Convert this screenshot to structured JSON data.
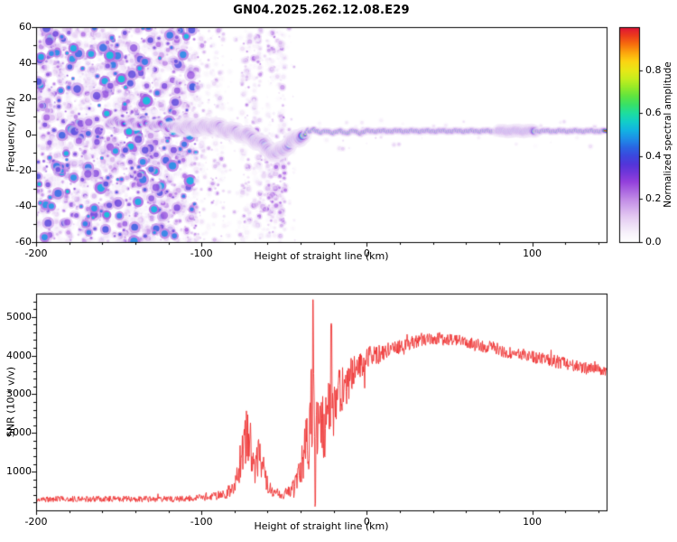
{
  "title": "GN04.2025.262.12.08.E29",
  "chart_data": [
    {
      "type": "heatmap",
      "panel": "spectrogram",
      "title": "",
      "xlabel": "Height of straight line (km)",
      "ylabel": "Frequency (Hz)",
      "xlim": [
        -200,
        145
      ],
      "ylim": [
        -60,
        60
      ],
      "xticks": [
        -200,
        -100,
        0,
        100
      ],
      "yticks": [
        -60,
        -40,
        -20,
        0,
        20,
        40,
        60
      ],
      "grid": false,
      "colorbar": {
        "label": "Normalized spectral amplitude",
        "ticks": [
          "0.0",
          "0.2",
          "0.4",
          "0.6",
          "0.8"
        ],
        "tick_values": [
          0,
          0.2,
          0.4,
          0.6,
          0.8
        ],
        "range": [
          0,
          1
        ]
      },
      "colormap_stops": [
        [
          0.0,
          "#ffffff"
        ],
        [
          0.05,
          "#f6f0fb"
        ],
        [
          0.12,
          "#e3c8f2"
        ],
        [
          0.2,
          "#c08ae6"
        ],
        [
          0.28,
          "#9440dc"
        ],
        [
          0.35,
          "#5a30d8"
        ],
        [
          0.42,
          "#3050e0"
        ],
        [
          0.48,
          "#1e8ee8"
        ],
        [
          0.54,
          "#0cc6df"
        ],
        [
          0.6,
          "#1ede9e"
        ],
        [
          0.66,
          "#46e34a"
        ],
        [
          0.72,
          "#96ea28"
        ],
        [
          0.78,
          "#dff019"
        ],
        [
          0.84,
          "#fcd412"
        ],
        [
          0.89,
          "#fc9a0c"
        ],
        [
          0.94,
          "#f4500e"
        ],
        [
          1.0,
          "#dd1238"
        ]
      ],
      "noise_region": {
        "x_range": [
          -200,
          -103
        ],
        "sparse_until": -86,
        "description": "dense low-amplitude purple speckle noise across all frequencies"
      },
      "noise_columns": [
        -73,
        -66,
        -58,
        -52
      ],
      "trace": {
        "description": "carrier frequency trace: intermittent blobs near +6 Hz on the left, dips to -11 Hz near -55 km, then a tight horizontal high-amplitude line near +2 Hz out to the right edge",
        "x": [
          -157,
          -150,
          -144,
          -138,
          -131,
          -124,
          -117,
          -110,
          -103,
          -97,
          -92,
          -87,
          -82,
          -77,
          -73,
          -69,
          -65,
          -61,
          -58,
          -55,
          -52,
          -48,
          -44,
          -40,
          -36,
          -32,
          -28,
          -24,
          -20,
          -16,
          -12,
          -8,
          -4,
          0,
          6,
          12,
          20,
          30,
          45,
          60,
          75,
          85,
          92,
          100,
          115,
          130,
          145
        ],
        "freq": [
          7,
          7,
          7,
          6,
          6,
          5,
          4,
          4,
          4,
          4,
          5,
          3,
          2,
          1,
          0,
          -2,
          -4,
          -7,
          -9,
          -11,
          -9,
          -6,
          -3,
          -1,
          1,
          3,
          1,
          2,
          1,
          2,
          1,
          2,
          1,
          2,
          2,
          2,
          2,
          2,
          2,
          2,
          2,
          2,
          2,
          2,
          2,
          2,
          2
        ],
        "amp": [
          0.5,
          0.55,
          0.5,
          0.45,
          0.5,
          0.45,
          0.5,
          0.55,
          0.6,
          0.6,
          0.6,
          0.65,
          0.6,
          0.65,
          0.65,
          0.7,
          0.7,
          0.75,
          0.7,
          0.75,
          0.7,
          0.75,
          0.8,
          0.85,
          0.85,
          0.9,
          0.85,
          0.9,
          0.9,
          0.95,
          0.9,
          0.95,
          1,
          1,
          1,
          1,
          1,
          1,
          1,
          1,
          1,
          1,
          1,
          1,
          1,
          1,
          1
        ]
      }
    },
    {
      "type": "line",
      "panel": "snr",
      "title": "",
      "xlabel": "Height of straight line (km)",
      "ylabel": "SNR (10 * v/v)",
      "xlim": [
        -200,
        145
      ],
      "ylim": [
        0,
        5600
      ],
      "xticks": [
        -200,
        -100,
        0,
        100
      ],
      "yticks": [
        1000,
        2000,
        3000,
        4000,
        5000
      ],
      "grid": false,
      "legend": "none",
      "color": "#ee3333",
      "envelope": {
        "x": [
          -200,
          -150,
          -120,
          -108,
          -100,
          -95,
          -90,
          -85,
          -80,
          -77,
          -74,
          -71,
          -68,
          -65,
          -62,
          -60,
          -57,
          -54,
          -50,
          -46,
          -43,
          -40,
          -38,
          -36,
          -34,
          -32,
          -30,
          -28,
          -26,
          -24,
          -22,
          -20,
          -18,
          -15,
          -12,
          -9,
          -6,
          -3,
          0,
          5,
          10,
          15,
          20,
          25,
          30,
          35,
          40,
          45,
          50,
          60,
          70,
          80,
          90,
          100,
          110,
          120,
          135,
          145
        ],
        "y": [
          290,
          300,
          290,
          300,
          330,
          360,
          390,
          430,
          650,
          1150,
          1750,
          1900,
          1250,
          1500,
          1050,
          600,
          480,
          440,
          430,
          480,
          620,
          950,
          1350,
          1850,
          2500,
          2800,
          2400,
          2700,
          2100,
          2500,
          2900,
          2400,
          2800,
          3100,
          3300,
          3500,
          3600,
          3750,
          3900,
          4000,
          4100,
          4150,
          4250,
          4300,
          4380,
          4420,
          4450,
          4430,
          4400,
          4330,
          4250,
          4150,
          4050,
          3950,
          3880,
          3800,
          3650,
          3580
        ]
      },
      "noise_amp": {
        "x": [
          -200,
          -110,
          -95,
          -85,
          -80,
          -75,
          -70,
          -65,
          -62,
          -58,
          -52,
          -46,
          -42,
          -38,
          -34,
          -30,
          -26,
          -22,
          -18,
          -14,
          -10,
          -5,
          0,
          10,
          20,
          40,
          70,
          100,
          145
        ],
        "a": [
          80,
          80,
          100,
          150,
          300,
          600,
          650,
          520,
          400,
          160,
          130,
          160,
          380,
          850,
          1100,
          1000,
          950,
          900,
          750,
          620,
          520,
          420,
          320,
          240,
          190,
          170,
          175,
          175,
          155
        ]
      },
      "spikes": [
        {
          "x": -32.5,
          "y": 5420
        },
        {
          "x": -21.5,
          "y": 4780
        },
        {
          "x": -31.2,
          "y": 150
        }
      ]
    }
  ]
}
